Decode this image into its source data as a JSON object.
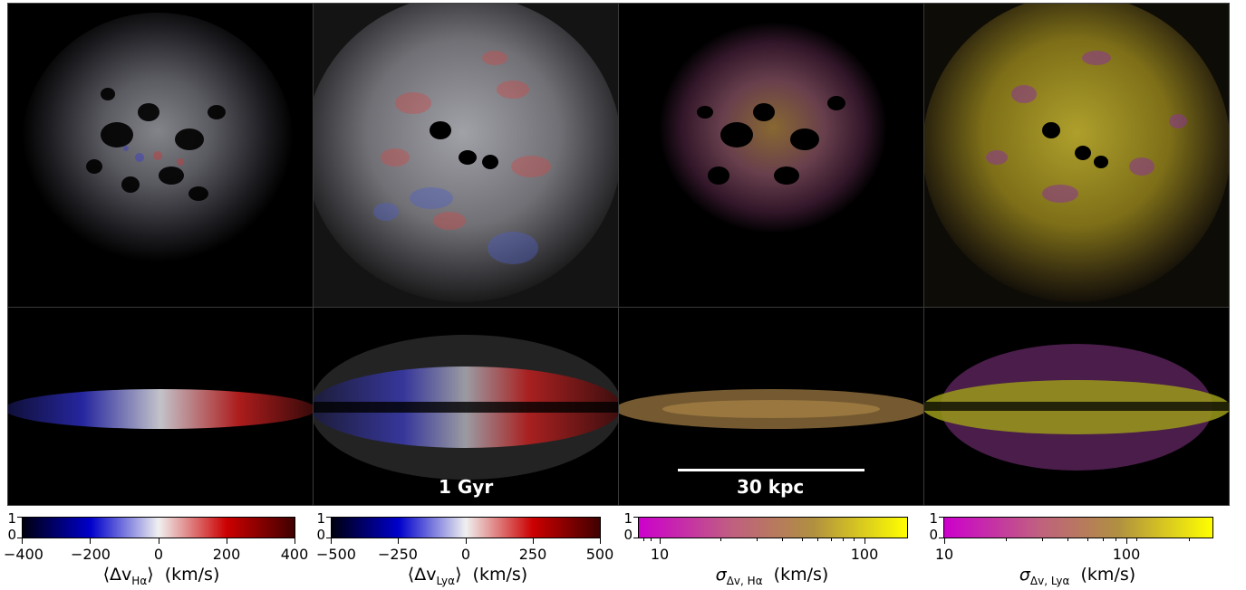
{
  "panels": {
    "time_label": "1 Gyr",
    "scale_label": "30 kpc"
  },
  "colorbars": [
    {
      "ticks": [
        "−400",
        "−200",
        "0",
        "200",
        "400"
      ],
      "title_main": "⟨Δv",
      "title_sub": "Hα",
      "title_end": "⟩  (km/s)",
      "ymin": "0",
      "ymax": "1"
    },
    {
      "ticks": [
        "−500",
        "−250",
        "0",
        "250",
        "500"
      ],
      "title_main": "⟨Δv",
      "title_sub": "Lyα",
      "title_end": "⟩  (km/s)",
      "ymin": "0",
      "ymax": "1"
    },
    {
      "ticks": [
        "10",
        "100"
      ],
      "title_main": "σ",
      "title_sub": "Δv, Hα",
      "title_end": "  (km/s)",
      "ymin": "0",
      "ymax": "1"
    },
    {
      "ticks": [
        "10",
        "100"
      ],
      "title_main": "σ",
      "title_sub": "Δv, Lyα",
      "title_end": "  (km/s)",
      "ymin": "0",
      "ymax": "1"
    }
  ],
  "colors": {
    "diverging_low": "#000010",
    "diverging_blue": "#0000cc",
    "diverging_mid": "#f0f0f0",
    "diverging_red": "#cc0000",
    "diverging_high": "#400000",
    "seq_low": "#cc00cc",
    "seq_high": "#ffff00"
  }
}
